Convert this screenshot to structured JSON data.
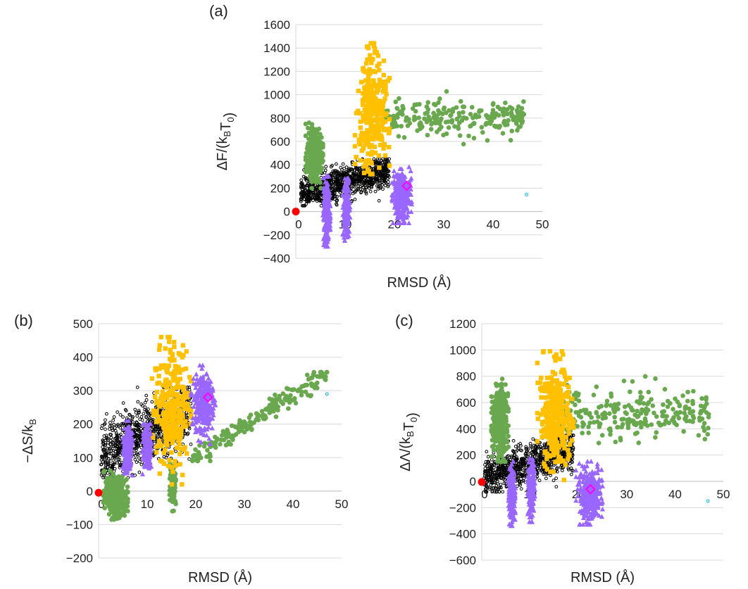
{
  "figure": {
    "colors": {
      "black_series": "#000000",
      "green_series": "#6aa84f",
      "gold_series": "#ffc000",
      "purple_series": "#9966ff",
      "origin_marker": "#ff0000",
      "diamond_marker": "#ff00ff",
      "circle_marker": "#00b0f0",
      "gridline": "#d9d9d9"
    }
  },
  "chart_data": [
    {
      "panel": "(a)",
      "type": "scatter",
      "xlabel": "RMSD (Å)",
      "ylabel": "ΔF/(kBT0)",
      "xlim": [
        0,
        50
      ],
      "ylim": [
        -400,
        1600
      ],
      "xticks": [
        0,
        10,
        20,
        30,
        40,
        50
      ],
      "yticks": [
        -400,
        -200,
        0,
        200,
        400,
        600,
        800,
        1000,
        1200,
        1400,
        1600
      ],
      "grid": "horizontal",
      "clusters": [
        {
          "series": "black",
          "marker": "circle-open",
          "x": [
            1,
            19
          ],
          "y": [
            50,
            450
          ],
          "n": 900
        },
        {
          "series": "green",
          "marker": "circle",
          "x": [
            2,
            5.5
          ],
          "y": [
            200,
            760
          ],
          "n": 320
        },
        {
          "series": "green",
          "marker": "circle",
          "x": [
            18,
            47
          ],
          "y": [
            550,
            1040
          ],
          "n": 220
        },
        {
          "series": "gold",
          "marker": "square",
          "x": [
            12,
            19
          ],
          "y": [
            320,
            1440
          ],
          "n": 300
        },
        {
          "series": "purple",
          "marker": "triangle",
          "x": [
            5.5,
            7
          ],
          "y": [
            -300,
            300
          ],
          "n": 220
        },
        {
          "series": "purple",
          "marker": "triangle",
          "x": [
            9.5,
            11
          ],
          "y": [
            -250,
            280
          ],
          "n": 200
        },
        {
          "series": "purple",
          "marker": "triangle",
          "x": [
            19.5,
            23.5
          ],
          "y": [
            -100,
            380
          ],
          "n": 300
        }
      ],
      "special_points": [
        {
          "series": "origin",
          "marker": "circle-filled",
          "x": 0,
          "y": 0
        },
        {
          "series": "diamond",
          "marker": "diamond-open",
          "x": 22.5,
          "y": 220
        },
        {
          "series": "circle",
          "marker": "circle-open",
          "x": 46.8,
          "y": 145
        }
      ]
    },
    {
      "panel": "(b)",
      "type": "scatter",
      "xlabel": "RMSD (Å)",
      "ylabel": "−ΔS/kB",
      "xlim": [
        0,
        50
      ],
      "ylim": [
        -200,
        500
      ],
      "xticks": [
        0,
        10,
        20,
        30,
        40,
        50
      ],
      "yticks": [
        -200,
        -100,
        0,
        100,
        200,
        300,
        400,
        500
      ],
      "grid": "horizontal",
      "clusters": [
        {
          "series": "black",
          "marker": "circle-open",
          "x": [
            0.5,
            19
          ],
          "y": [
            40,
            310
          ],
          "n": 900
        },
        {
          "series": "green",
          "marker": "circle",
          "x": [
            1,
            6
          ],
          "y": [
            -85,
            60
          ],
          "n": 300
        },
        {
          "series": "green",
          "marker": "circle",
          "x": [
            14.5,
            16
          ],
          "y": [
            -60,
            90
          ],
          "n": 90
        },
        {
          "series": "green",
          "marker": "circle",
          "x": [
            19,
            47
          ],
          "y": [
            90,
            355
          ],
          "n": 200
        },
        {
          "series": "gold",
          "marker": "square",
          "x": [
            11,
            19
          ],
          "y": [
            20,
            460
          ],
          "n": 300
        },
        {
          "series": "purple",
          "marker": "triangle",
          "x": [
            5,
            7
          ],
          "y": [
            40,
            210
          ],
          "n": 180
        },
        {
          "series": "purple",
          "marker": "triangle",
          "x": [
            9,
            11
          ],
          "y": [
            40,
            200
          ],
          "n": 160
        },
        {
          "series": "purple",
          "marker": "triangle",
          "x": [
            19,
            24
          ],
          "y": [
            140,
            375
          ],
          "n": 300
        }
      ],
      "special_points": [
        {
          "series": "origin",
          "marker": "circle-filled",
          "x": 0,
          "y": -5
        },
        {
          "series": "diamond",
          "marker": "diamond-open",
          "x": 22.5,
          "y": 280
        },
        {
          "series": "circle",
          "marker": "circle-open",
          "x": 47,
          "y": 290
        }
      ]
    },
    {
      "panel": "(c)",
      "type": "scatter",
      "xlabel": "RMSD (Å)",
      "ylabel": "ΔΛ/(kBT0)",
      "xlim": [
        0,
        50
      ],
      "ylim": [
        -600,
        1200
      ],
      "xticks": [
        0,
        10,
        20,
        30,
        40,
        50
      ],
      "yticks": [
        -600,
        -400,
        -200,
        0,
        200,
        400,
        600,
        800,
        1000,
        1200
      ],
      "grid": "horizontal",
      "clusters": [
        {
          "series": "black",
          "marker": "circle-open",
          "x": [
            0.5,
            19
          ],
          "y": [
            -80,
            350
          ],
          "n": 900
        },
        {
          "series": "green",
          "marker": "circle",
          "x": [
            2,
            5.5
          ],
          "y": [
            150,
            780
          ],
          "n": 320
        },
        {
          "series": "green",
          "marker": "circle",
          "x": [
            16,
            47
          ],
          "y": [
            200,
            830
          ],
          "n": 250
        },
        {
          "series": "gold",
          "marker": "square",
          "x": [
            11.5,
            19
          ],
          "y": [
            0,
            990
          ],
          "n": 300
        },
        {
          "series": "purple",
          "marker": "triangle",
          "x": [
            5.5,
            7
          ],
          "y": [
            -340,
            160
          ],
          "n": 220
        },
        {
          "series": "purple",
          "marker": "triangle",
          "x": [
            9.5,
            11
          ],
          "y": [
            -310,
            170
          ],
          "n": 200
        },
        {
          "series": "purple",
          "marker": "triangle",
          "x": [
            19.5,
            25
          ],
          "y": [
            -330,
            150
          ],
          "n": 300
        }
      ],
      "special_points": [
        {
          "series": "origin",
          "marker": "circle-filled",
          "x": 0,
          "y": -5
        },
        {
          "series": "diamond",
          "marker": "diamond-open",
          "x": 22.5,
          "y": -60
        },
        {
          "series": "circle",
          "marker": "circle-open",
          "x": 46.8,
          "y": -150
        }
      ]
    }
  ]
}
